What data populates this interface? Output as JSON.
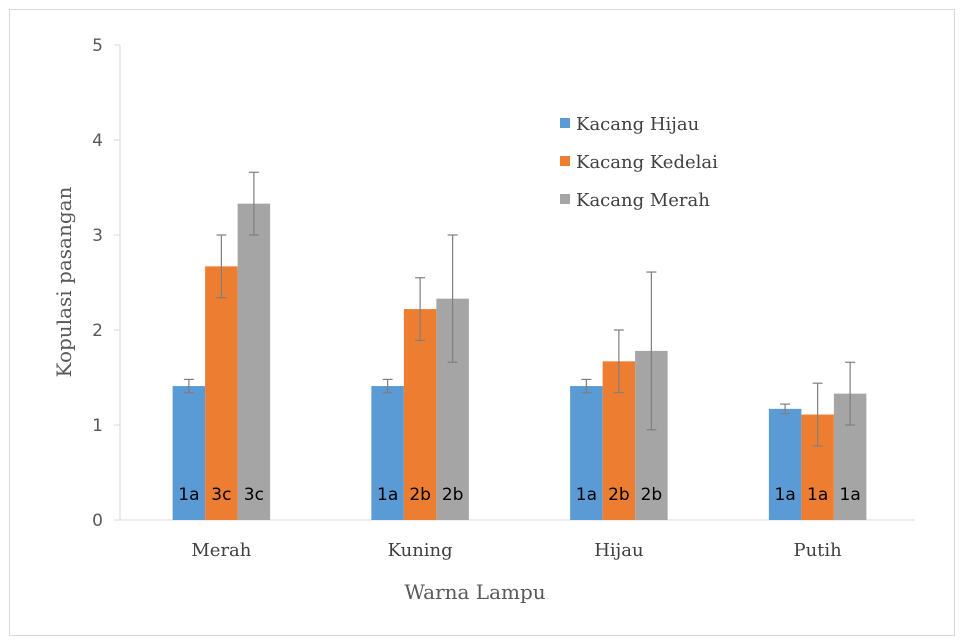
{
  "chart_data": {
    "type": "bar",
    "title": "",
    "xlabel": "Warna Lampu",
    "ylabel": "Kopulasi pasangan",
    "ylim": [
      0,
      5
    ],
    "yticks": [
      "0",
      "1",
      "2",
      "3",
      "4",
      "5"
    ],
    "categories": [
      "Merah",
      "Kuning",
      "Hijau",
      "Putih"
    ],
    "grid": false,
    "legend_position": "top-right",
    "series": [
      {
        "name": "Kacang Hijau",
        "color": "#5b9bd5",
        "values": [
          1.41,
          1.41,
          1.41,
          1.17
        ],
        "errors": [
          0.07,
          0.07,
          0.07,
          0.05
        ],
        "labels": [
          "1a",
          "1a",
          "1a",
          "1a"
        ]
      },
      {
        "name": "Kacang Kedelai",
        "color": "#ed7d31",
        "values": [
          2.67,
          2.22,
          1.67,
          1.11
        ],
        "errors": [
          0.33,
          0.33,
          0.33,
          0.33
        ],
        "labels": [
          "3c",
          "2b",
          "2b",
          "1a"
        ]
      },
      {
        "name": "Kacang Merah",
        "color": "#a5a5a5",
        "values": [
          3.33,
          2.33,
          1.78,
          1.33
        ],
        "errors": [
          0.33,
          0.67,
          0.83,
          0.33
        ],
        "labels": [
          "3c",
          "2b",
          "2b",
          "1a"
        ]
      }
    ]
  }
}
